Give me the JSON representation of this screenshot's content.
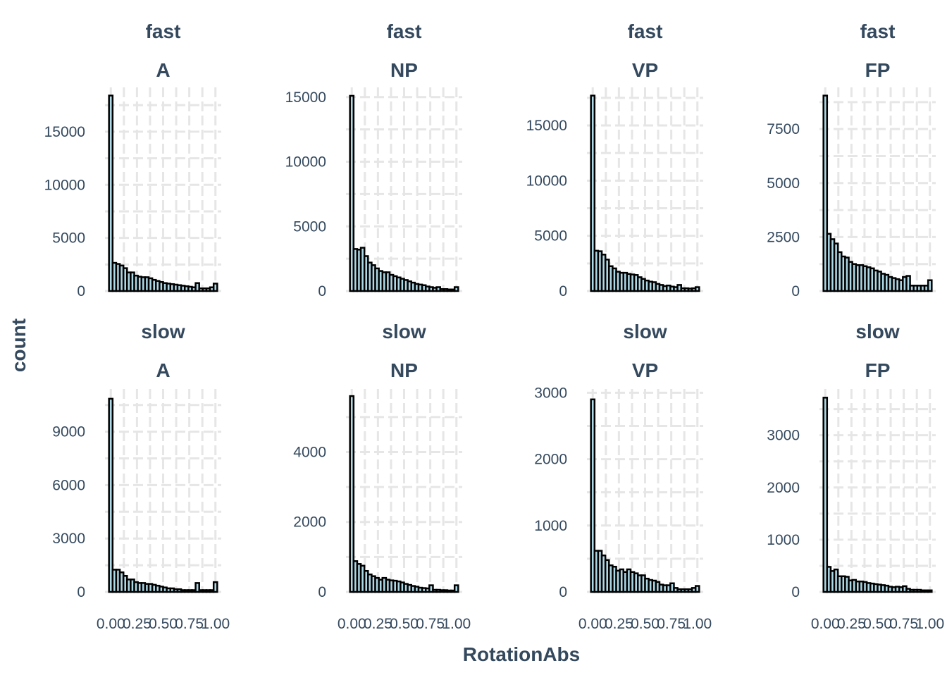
{
  "chart_data": {
    "type": "bar",
    "subtype": "histogram-facet-grid",
    "xlabel": "RotationAbs",
    "ylabel": "count",
    "x_ticks": [
      0,
      0.25,
      0.5,
      0.75,
      1
    ],
    "x_tick_labels": [
      "0.00",
      "0.25",
      "0.50",
      "0.75",
      "1.00"
    ],
    "xlim": [
      0,
      1
    ],
    "bins": 30,
    "grid": true,
    "colors": {
      "fill": "#add8e6",
      "outline": "#000000",
      "text": "#34495e",
      "grid": "#e6e6e6"
    },
    "panels": [
      {
        "speed": "fast",
        "group": "A",
        "ylim": [
          0,
          18500
        ],
        "y_ticks": [
          0,
          5000,
          10000,
          15000
        ],
        "y_tick_labels": [
          "0",
          "5000",
          "10000",
          "15000"
        ],
        "values": [
          18400,
          2650,
          2550,
          2400,
          2150,
          1750,
          1750,
          1450,
          1350,
          1300,
          1300,
          1200,
          1050,
          950,
          850,
          750,
          700,
          650,
          600,
          550,
          500,
          450,
          400,
          350,
          750,
          250,
          250,
          250,
          350,
          700
        ]
      },
      {
        "speed": "fast",
        "group": "NP",
        "ylim": [
          0,
          15200
        ],
        "y_ticks": [
          0,
          5000,
          10000,
          15000
        ],
        "y_tick_labels": [
          "0",
          "5000",
          "10000",
          "15000"
        ],
        "values": [
          15100,
          3250,
          3200,
          3350,
          2700,
          2200,
          2000,
          1750,
          1550,
          1450,
          1450,
          1250,
          1150,
          1050,
          950,
          850,
          750,
          650,
          550,
          500,
          450,
          350,
          300,
          250,
          300,
          150,
          150,
          120,
          120,
          300
        ]
      },
      {
        "speed": "fast",
        "group": "VP",
        "ylim": [
          0,
          17800
        ],
        "y_ticks": [
          0,
          5000,
          10000,
          15000
        ],
        "y_tick_labels": [
          "0",
          "5000",
          "10000",
          "15000"
        ],
        "values": [
          17700,
          3650,
          3600,
          3300,
          2850,
          2250,
          2050,
          1750,
          1650,
          1650,
          1550,
          1500,
          1450,
          1250,
          1100,
          950,
          850,
          800,
          650,
          550,
          450,
          500,
          400,
          350,
          550,
          250,
          250,
          220,
          250,
          350
        ]
      },
      {
        "speed": "fast",
        "group": "FP",
        "ylim": [
          0,
          9100
        ],
        "y_ticks": [
          0,
          2500,
          5000,
          7500
        ],
        "y_tick_labels": [
          "0",
          "2500",
          "5000",
          "7500"
        ],
        "values": [
          9050,
          2650,
          2400,
          2200,
          1800,
          1600,
          1550,
          1350,
          1250,
          1200,
          1200,
          1150,
          1100,
          1050,
          950,
          900,
          800,
          750,
          650,
          600,
          550,
          500,
          650,
          700,
          250,
          250,
          250,
          250,
          250,
          500
        ]
      },
      {
        "speed": "slow",
        "group": "A",
        "ylim": [
          0,
          11000
        ],
        "y_ticks": [
          0,
          3000,
          6000,
          9000
        ],
        "y_tick_labels": [
          "0",
          "3000",
          "6000",
          "9000"
        ],
        "values": [
          10850,
          1250,
          1250,
          1100,
          900,
          700,
          700,
          550,
          500,
          500,
          450,
          450,
          400,
          350,
          300,
          250,
          200,
          200,
          150,
          150,
          100,
          100,
          100,
          100,
          500,
          100,
          100,
          100,
          100,
          550
        ]
      },
      {
        "speed": "slow",
        "group": "NP",
        "ylim": [
          0,
          5600
        ],
        "y_ticks": [
          0,
          2000,
          4000
        ],
        "y_tick_labels": [
          "0",
          "2000",
          "4000"
        ],
        "values": [
          5600,
          880,
          800,
          750,
          600,
          500,
          450,
          400,
          350,
          400,
          350,
          330,
          320,
          300,
          270,
          230,
          200,
          170,
          150,
          120,
          110,
          100,
          190,
          60,
          60,
          50,
          50,
          40,
          40,
          190
        ]
      },
      {
        "speed": "slow",
        "group": "VP",
        "ylim": [
          0,
          2950
        ],
        "y_ticks": [
          0,
          1000,
          2000,
          3000
        ],
        "y_tick_labels": [
          "0",
          "1000",
          "2000",
          "3000"
        ],
        "values": [
          2900,
          620,
          620,
          550,
          480,
          400,
          380,
          320,
          340,
          300,
          340,
          300,
          280,
          250,
          250,
          200,
          180,
          170,
          150,
          110,
          100,
          100,
          130,
          60,
          40,
          40,
          40,
          40,
          60,
          90
        ]
      },
      {
        "speed": "slow",
        "group": "FP",
        "ylim": [
          0,
          3750
        ],
        "y_ticks": [
          0,
          1000,
          2000,
          3000
        ],
        "y_tick_labels": [
          "0",
          "1000",
          "2000",
          "3000"
        ],
        "values": [
          3720,
          480,
          400,
          430,
          300,
          300,
          290,
          220,
          230,
          200,
          200,
          190,
          170,
          160,
          150,
          140,
          130,
          120,
          100,
          90,
          100,
          90,
          110,
          60,
          40,
          40,
          40,
          30,
          30,
          30
        ]
      }
    ]
  }
}
